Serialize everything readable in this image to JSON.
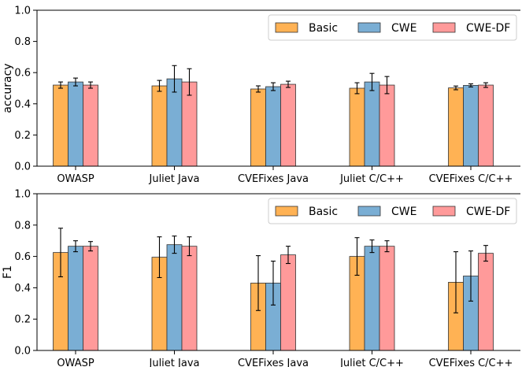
{
  "chart_data": [
    {
      "type": "bar",
      "ylabel": "accuracy",
      "ylim": [
        0,
        1.0
      ],
      "yticks": [
        "0.0",
        "0.2",
        "0.4",
        "0.6",
        "0.8",
        "1.0"
      ],
      "grid": false,
      "legend_position": "top-right",
      "categories": [
        "OWASP",
        "Juliet Java",
        "CVEFixes Java",
        "Juliet C/C++",
        "CVEFixes C/C++"
      ],
      "series": [
        {
          "name": "Basic",
          "color": "#ffb254",
          "values": [
            0.52,
            0.515,
            0.495,
            0.5,
            0.502
          ],
          "errors": [
            0.02,
            0.035,
            0.02,
            0.035,
            0.012
          ]
        },
        {
          "name": "CWE",
          "color": "#7aaed4",
          "values": [
            0.54,
            0.56,
            0.51,
            0.54,
            0.518
          ],
          "errors": [
            0.025,
            0.085,
            0.025,
            0.055,
            0.01
          ]
        },
        {
          "name": "CWE-DF",
          "color": "#ff9a9a",
          "values": [
            0.52,
            0.54,
            0.525,
            0.52,
            0.52
          ],
          "errors": [
            0.02,
            0.085,
            0.02,
            0.055,
            0.015
          ]
        }
      ]
    },
    {
      "type": "bar",
      "ylabel": "F1",
      "ylim": [
        0,
        1.0
      ],
      "yticks": [
        "0.0",
        "0.2",
        "0.4",
        "0.6",
        "0.8",
        "1.0"
      ],
      "grid": false,
      "legend_position": "top-right",
      "categories": [
        "OWASP",
        "Juliet Java",
        "CVEFixes Java",
        "Juliet C/C++",
        "CVEFixes C/C++"
      ],
      "series": [
        {
          "name": "Basic",
          "color": "#ffb254",
          "values": [
            0.625,
            0.595,
            0.43,
            0.6,
            0.435
          ],
          "errors": [
            0.155,
            0.13,
            0.175,
            0.12,
            0.195
          ]
        },
        {
          "name": "CWE",
          "color": "#7aaed4",
          "values": [
            0.665,
            0.675,
            0.43,
            0.665,
            0.475
          ],
          "errors": [
            0.035,
            0.055,
            0.14,
            0.04,
            0.16
          ]
        },
        {
          "name": "CWE-DF",
          "color": "#ff9a9a",
          "values": [
            0.665,
            0.665,
            0.61,
            0.665,
            0.62
          ],
          "errors": [
            0.03,
            0.06,
            0.055,
            0.035,
            0.05
          ]
        }
      ]
    }
  ]
}
